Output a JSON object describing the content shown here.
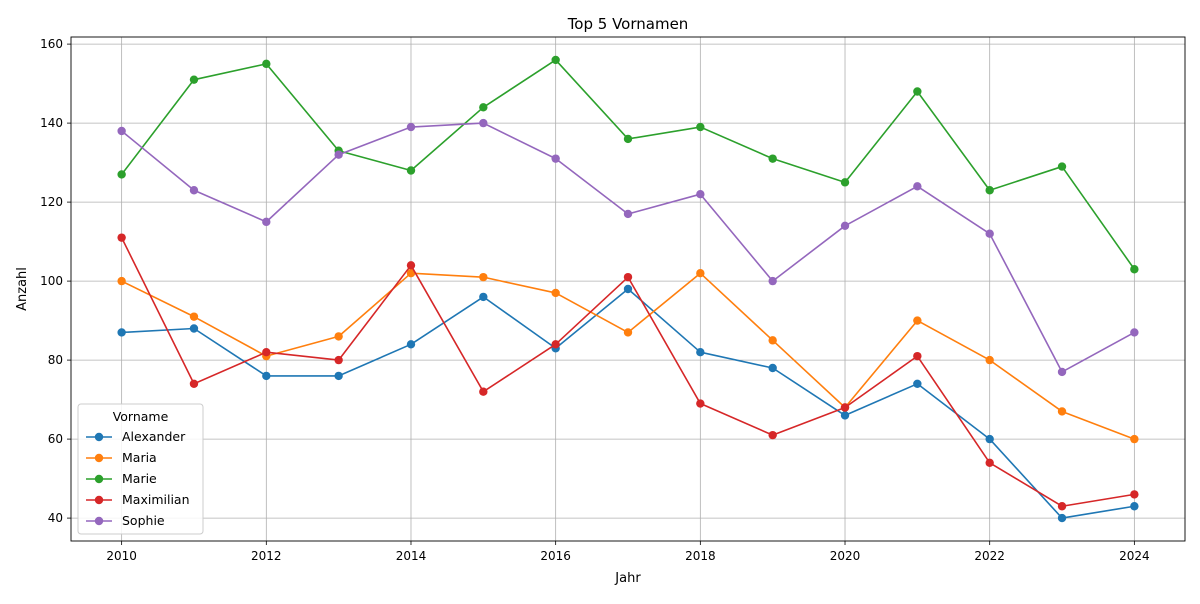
{
  "chart_data": {
    "type": "line",
    "title": "Top 5 Vornamen",
    "xlabel": "Jahr",
    "ylabel": "Anzahl",
    "x": [
      2010,
      2011,
      2012,
      2013,
      2014,
      2015,
      2016,
      2017,
      2018,
      2019,
      2020,
      2021,
      2022,
      2023,
      2024
    ],
    "xlim": [
      2009.3,
      2024.7
    ],
    "ylim": [
      34.2,
      161.8
    ],
    "xticks": [
      2010,
      2012,
      2014,
      2016,
      2018,
      2020,
      2022,
      2024
    ],
    "yticks": [
      40,
      60,
      80,
      100,
      120,
      140,
      160
    ],
    "grid": true,
    "legend": {
      "title": "Vorname",
      "placement": "lower-left"
    },
    "series": [
      {
        "name": "Alexander",
        "color": "#1f77b4",
        "values": [
          87,
          88,
          76,
          76,
          84,
          96,
          83,
          98,
          82,
          78,
          66,
          74,
          60,
          40,
          43
        ]
      },
      {
        "name": "Maria",
        "color": "#ff7f0e",
        "values": [
          100,
          91,
          81,
          86,
          102,
          101,
          97,
          87,
          102,
          85,
          68,
          90,
          80,
          67,
          60
        ]
      },
      {
        "name": "Marie",
        "color": "#2ca02c",
        "values": [
          127,
          151,
          155,
          133,
          128,
          144,
          156,
          136,
          139,
          131,
          125,
          148,
          123,
          129,
          103
        ]
      },
      {
        "name": "Maximilian",
        "color": "#d62728",
        "values": [
          111,
          74,
          82,
          80,
          104,
          72,
          84,
          101,
          69,
          61,
          68,
          81,
          54,
          43,
          46
        ]
      },
      {
        "name": "Sophie",
        "color": "#9467bd",
        "values": [
          138,
          123,
          115,
          132,
          139,
          140,
          131,
          117,
          122,
          100,
          114,
          124,
          112,
          77,
          87
        ]
      }
    ]
  }
}
